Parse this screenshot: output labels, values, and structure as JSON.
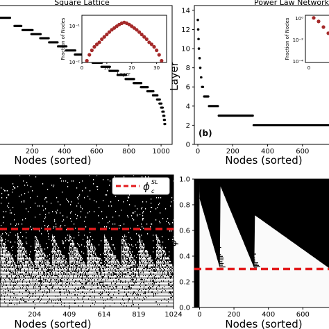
{
  "chart_data": [
    {
      "type": "scatter",
      "panel": "a",
      "title": "Square Lattice",
      "xlabel": "Nodes (sorted)",
      "ylabel": "",
      "xlim": [
        0,
        1060
      ],
      "ylim": [
        0,
        34
      ],
      "xticks": [
        "200",
        "400",
        "600",
        "800",
        "1000"
      ],
      "color": "#000000",
      "series": [
        {
          "x": [
            0,
            60
          ],
          "y": [
            31,
            31
          ]
        },
        {
          "x": [
            90,
            130
          ],
          "y": [
            29,
            29
          ]
        },
        {
          "x": [
            140,
            200
          ],
          "y": [
            28,
            28
          ]
        },
        {
          "x": [
            195,
            250
          ],
          "y": [
            27,
            27
          ]
        },
        {
          "x": [
            250,
            300
          ],
          "y": [
            26,
            26
          ]
        },
        {
          "x": [
            305,
            355
          ],
          "y": [
            25,
            25
          ]
        },
        {
          "x": [
            360,
            410
          ],
          "y": [
            24,
            24
          ]
        },
        {
          "x": [
            410,
            465
          ],
          "y": [
            23,
            23
          ]
        },
        {
          "x": [
            465,
            520
          ],
          "y": [
            22,
            22
          ]
        },
        {
          "x": [
            520,
            575
          ],
          "y": [
            21,
            21
          ]
        },
        {
          "x": [
            575,
            630
          ],
          "y": [
            20,
            20
          ]
        },
        {
          "x": [
            630,
            680
          ],
          "y": [
            19,
            19
          ]
        },
        {
          "x": [
            680,
            730
          ],
          "y": [
            18,
            18
          ]
        },
        {
          "x": [
            730,
            780
          ],
          "y": [
            17,
            17
          ]
        },
        {
          "x": [
            780,
            830
          ],
          "y": [
            16,
            16
          ]
        },
        {
          "x": [
            830,
            875
          ],
          "y": [
            15,
            15
          ]
        },
        {
          "x": [
            875,
            915
          ],
          "y": [
            14,
            14
          ]
        },
        {
          "x": [
            915,
            950
          ],
          "y": [
            13,
            13
          ]
        },
        {
          "x": [
            950,
            975
          ],
          "y": [
            12,
            12
          ]
        },
        {
          "x": [
            975,
            990
          ],
          "y": [
            11,
            11
          ]
        },
        {
          "x": [
            990,
            1000
          ],
          "y": [
            10,
            10
          ]
        },
        {
          "x": [
            1000,
            1008
          ],
          "y": [
            9,
            9
          ]
        },
        {
          "x": [
            1008,
            1014
          ],
          "y": [
            8,
            8
          ]
        },
        {
          "x": [
            1014,
            1018
          ],
          "y": [
            7,
            7
          ]
        },
        {
          "x": [
            1018,
            1021
          ],
          "y": [
            6,
            6
          ]
        },
        {
          "x": [
            1021,
            1023
          ],
          "y": [
            5,
            5
          ]
        }
      ],
      "inset": {
        "type": "scatter",
        "xlabel": "Layer",
        "ylabel": "Fraction of Nodes",
        "xticks": [
          "0",
          "10",
          "20",
          "30"
        ],
        "yticks": [
          "10⁻²",
          "10⁻¹"
        ],
        "log_y": true,
        "marker_color": "#a52a2a",
        "x": [
          2,
          3,
          4,
          5,
          6,
          7,
          8,
          9,
          10,
          11,
          12,
          13,
          14,
          15,
          16,
          17,
          18,
          19,
          20,
          21,
          22,
          23,
          24,
          25,
          26,
          27,
          28,
          29,
          30,
          31,
          32
        ],
        "y": [
          0.0012,
          0.0022,
          0.0035,
          0.005,
          0.0065,
          0.008,
          0.011,
          0.014,
          0.018,
          0.023,
          0.029,
          0.035,
          0.042,
          0.05,
          0.057,
          0.062,
          0.057,
          0.05,
          0.042,
          0.035,
          0.029,
          0.023,
          0.018,
          0.014,
          0.011,
          0.008,
          0.0065,
          0.005,
          0.0035,
          0.0022,
          0.0012
        ]
      }
    },
    {
      "type": "scatter",
      "panel": "b",
      "title": "Power Law Network",
      "label": "(b)",
      "xlabel": "Nodes (sorted)",
      "ylabel": "Layer",
      "xlim": [
        -20,
        760
      ],
      "ylim": [
        0,
        14.5
      ],
      "xticks": [
        "0",
        "200",
        "400",
        "600"
      ],
      "yticks": [
        "0",
        "2",
        "4",
        "6",
        "8",
        "10",
        "12",
        "14"
      ],
      "series": [
        {
          "x": [
            0,
            0
          ],
          "y": [
            13,
            13
          ]
        },
        {
          "x": [
            2,
            2
          ],
          "y": [
            12,
            12
          ]
        },
        {
          "x": [
            4,
            4
          ],
          "y": [
            11,
            11
          ]
        },
        {
          "x": [
            6,
            6
          ],
          "y": [
            10,
            10
          ]
        },
        {
          "x": [
            10,
            10
          ],
          "y": [
            9,
            9
          ]
        },
        {
          "x": [
            14,
            14
          ],
          "y": [
            8,
            8
          ]
        },
        {
          "x": [
            18,
            20
          ],
          "y": [
            7,
            7
          ]
        },
        {
          "x": [
            24,
            30
          ],
          "y": [
            6,
            6
          ]
        },
        {
          "x": [
            36,
            60
          ],
          "y": [
            5,
            5
          ]
        },
        {
          "x": [
            64,
            115
          ],
          "y": [
            4,
            4
          ]
        },
        {
          "x": [
            120,
            315
          ],
          "y": [
            3,
            3
          ]
        },
        {
          "x": [
            320,
            760
          ],
          "y": [
            2,
            2
          ]
        }
      ],
      "inset": {
        "ylabel": "Fraction of Nodes",
        "yticks": [
          "10⁰",
          "10⁻²",
          "10⁻⁴"
        ],
        "xticks": [
          "0"
        ],
        "x": [
          1,
          2,
          3,
          4
        ],
        "y": [
          0.6,
          0.3,
          0.1,
          0.03
        ]
      }
    },
    {
      "type": "heatmap",
      "panel": "c",
      "xlabel": "Nodes (sorted)",
      "xlim": [
        0,
        1024
      ],
      "xticks": [
        "204",
        "409",
        "614",
        "819",
        "1024"
      ],
      "legend_label": "ϕ",
      "legend_sup": "SL",
      "legend_sub": "c",
      "critical_phi": 0.59,
      "line_color": "#e31a1c"
    },
    {
      "type": "heatmap",
      "panel": "d",
      "xlabel": "Nodes (sorted)",
      "ylabel": "ϕ",
      "xlim": [
        -30,
        760
      ],
      "ylim": [
        0,
        1
      ],
      "xticks": [
        "0",
        "200",
        "400",
        "600"
      ],
      "yticks": [
        "0.0",
        "0.2",
        "0.4",
        "0.6",
        "0.8",
        "1.0"
      ],
      "critical_phi": 0.3,
      "line_color": "#e31a1c"
    }
  ]
}
